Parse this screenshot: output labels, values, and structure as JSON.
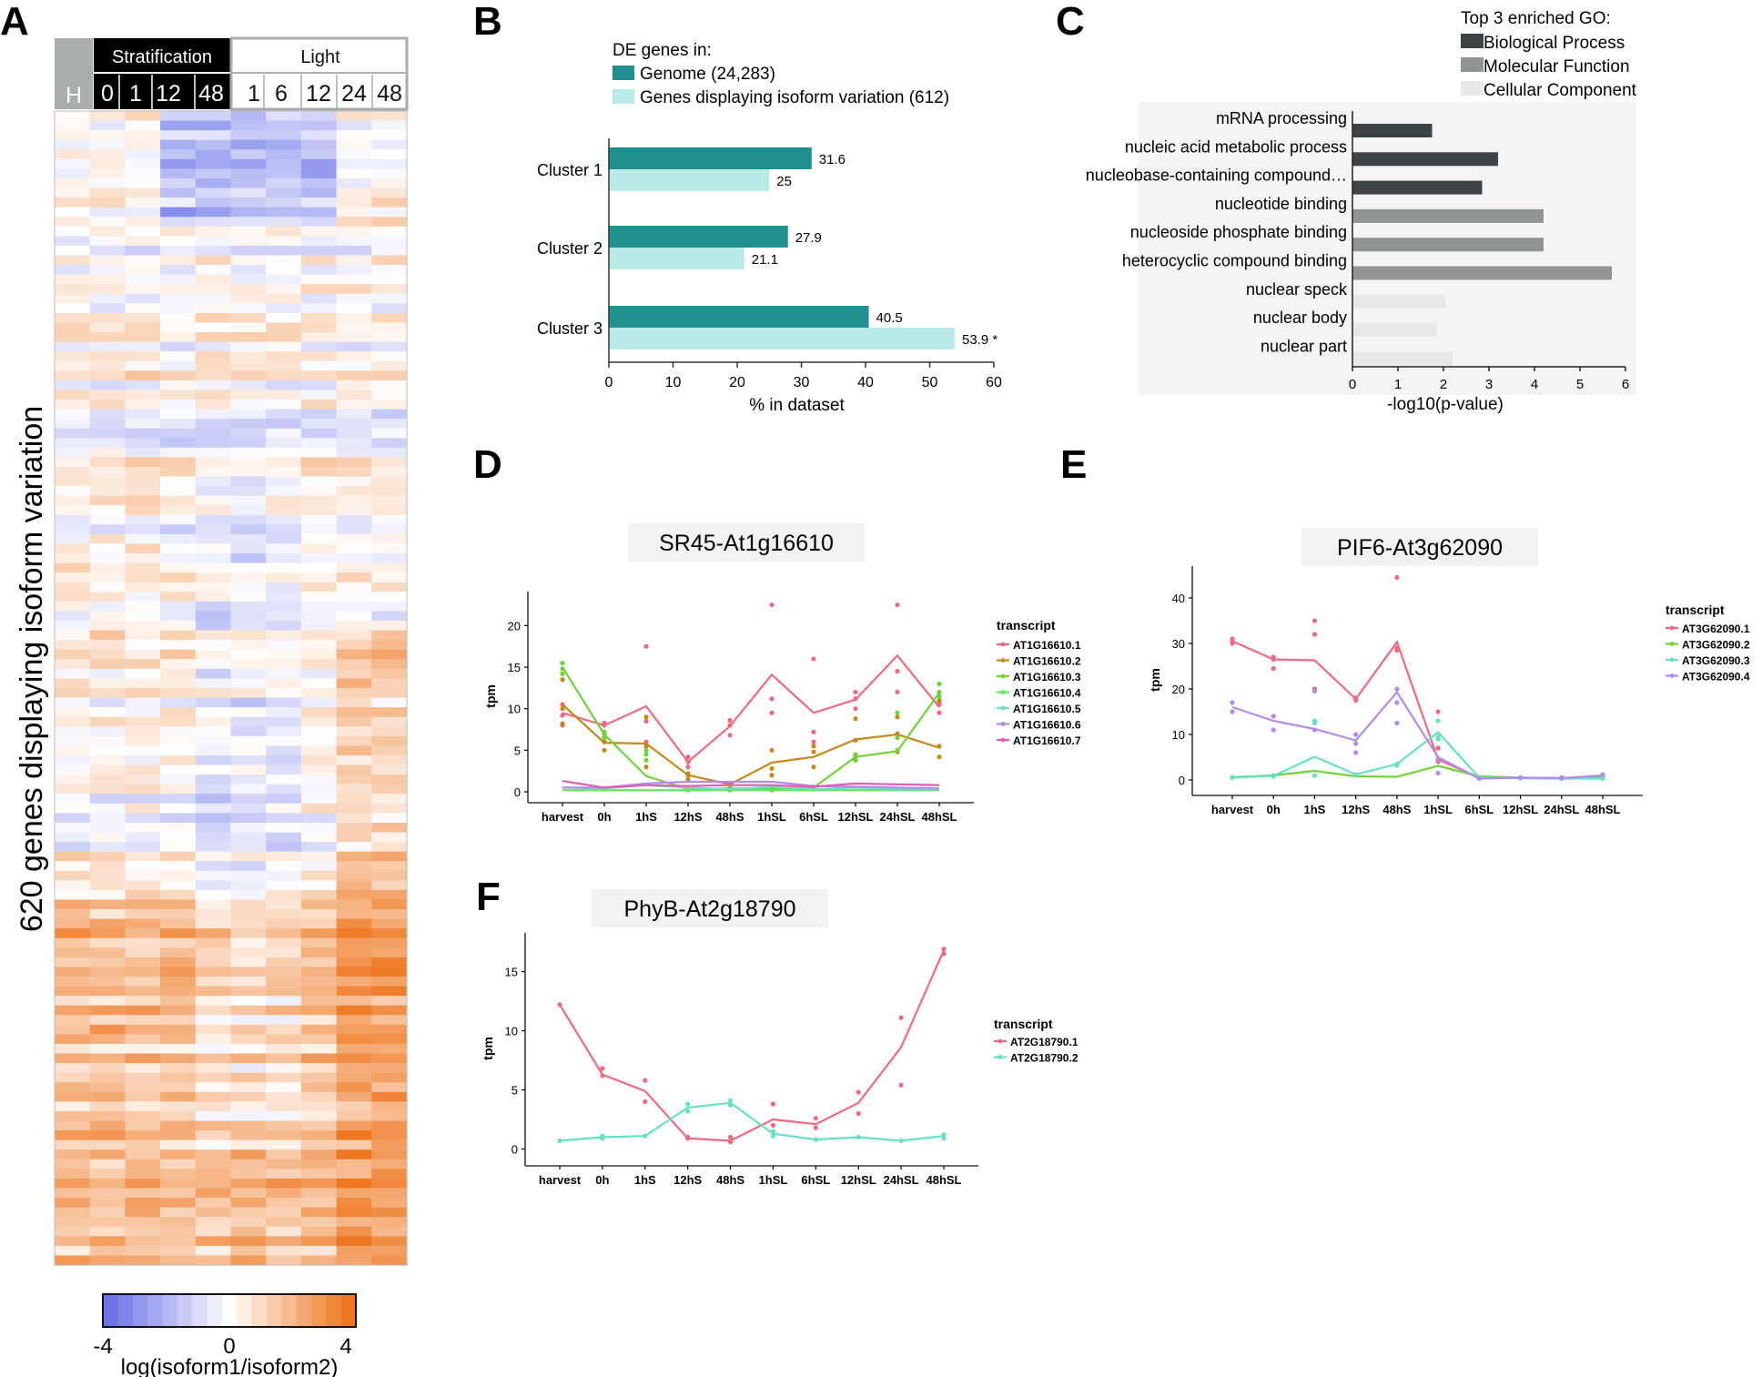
{
  "colors": {
    "teal_dark": "#1f8f8f",
    "teal_light": "#b8ebe6",
    "go_bio": "#3d4446",
    "go_mol": "#8f9593",
    "go_cell": "#e6e9e7",
    "heat_low": "#6a74e8",
    "heat_mid": "#ffffff",
    "heat_high": "#ee7720",
    "series_red": "#ee6a7f",
    "series_gold": "#c48a1c",
    "series_green": "#72d23a",
    "series_lime": "#5fe85a",
    "series_cyan": "#67e1c1",
    "series_purple": "#b08ce8",
    "series_magenta": "#e55bb8"
  },
  "panel_letters": [
    "A",
    "B",
    "C",
    "D",
    "E",
    "F"
  ],
  "panelA": {
    "ylabel": "620 genes displaying isoform variation",
    "header_groups": [
      "Stratification",
      "Light"
    ],
    "harvest_label": "H",
    "strat_times": [
      "0",
      "1",
      "12",
      "48"
    ],
    "light_times": [
      "1",
      "6",
      "12",
      "24",
      "48"
    ],
    "colorbar": {
      "min_label": "-4",
      "mid_label": "0",
      "max_label": "4",
      "title": "log(isoform1/isoform2)"
    }
  },
  "panelB": {
    "legend_title": "DE genes in:",
    "legend_items": [
      "Genome (24,283)",
      "Genes displaying isoform variation (612)"
    ],
    "star": "*"
  },
  "panelC": {
    "legend_title": "Top 3 enriched GO:",
    "legend_items": [
      "Biological Process",
      "Molecular Function",
      "Cellular Component"
    ]
  },
  "panelD": {
    "legend_title": "transcript"
  },
  "panelE": {
    "legend_title": "transcript"
  },
  "panelF": {
    "legend_title": "transcript"
  },
  "chart_data": [
    {
      "id": "A",
      "type": "heatmap",
      "title": "",
      "ylabel": "620 genes displaying isoform variation",
      "columns": [
        "H",
        "0",
        "1",
        "12",
        "48",
        "1",
        "6",
        "12",
        "24",
        "48"
      ],
      "column_groups": [
        {
          "name": "Harvest",
          "columns": [
            "H"
          ]
        },
        {
          "name": "Stratification",
          "columns": [
            "0",
            "1",
            "12",
            "48"
          ]
        },
        {
          "name": "Light",
          "columns": [
            "1",
            "6",
            "12",
            "24",
            "48"
          ]
        }
      ],
      "value_range": [
        -4,
        4
      ],
      "colorbar_label": "log(isoform1/isoform2)",
      "n_rows": 620
    },
    {
      "id": "B",
      "type": "bar",
      "orientation": "horizontal",
      "categories": [
        "Cluster 1",
        "Cluster 2",
        "Cluster 3"
      ],
      "series": [
        {
          "name": "Genome (24,283)",
          "values": [
            31.6,
            27.9,
            40.5
          ],
          "labels": [
            "31.6",
            "27.9",
            "40.5"
          ]
        },
        {
          "name": "Genes displaying isoform variation (612)",
          "values": [
            25,
            21.1,
            53.9
          ],
          "labels": [
            "25",
            "21.1",
            "53.9"
          ]
        }
      ],
      "xlabel": "% in dataset",
      "xlim": [
        0,
        60
      ],
      "xticks": [
        "0",
        "10",
        "20",
        "30",
        "40",
        "50",
        "60"
      ],
      "annotation": "53.9 *"
    },
    {
      "id": "C",
      "type": "bar",
      "orientation": "horizontal",
      "categories": [
        "mRNA processing",
        "nucleic acid metabolic process",
        "nucleobase-containing compound…",
        "nucleotide binding",
        "nucleoside phosphate binding",
        "heterocyclic compound binding",
        "nuclear speck",
        "nuclear body",
        "nuclear part"
      ],
      "groups": [
        "Biological Process",
        "Biological Process",
        "Biological Process",
        "Molecular Function",
        "Molecular Function",
        "Molecular Function",
        "Cellular Component",
        "Cellular Component",
        "Cellular Component"
      ],
      "values": [
        1.75,
        3.2,
        2.85,
        4.2,
        4.2,
        5.7,
        2.05,
        1.85,
        2.2
      ],
      "xlabel": "-log10(p-value)",
      "xlim": [
        0,
        6
      ],
      "xticks": [
        "0",
        "1",
        "2",
        "3",
        "4",
        "5",
        "6"
      ]
    },
    {
      "id": "D",
      "type": "line",
      "title": "SR45-At1g16610",
      "categories": [
        "harvest",
        "0h",
        "1hS",
        "12hS",
        "48hS",
        "1hSL",
        "6hSL",
        "12hSL",
        "24hSL",
        "48hSL"
      ],
      "ylabel": "tpm",
      "ylim": [
        0,
        23
      ],
      "yticks": [
        "0",
        "5",
        "10",
        "15",
        "20"
      ],
      "series": [
        {
          "name": "AT1G16610.1",
          "color": "#ee6a7f",
          "values": [
            9.5,
            8.0,
            10.3,
            3.6,
            7.9,
            14.1,
            9.5,
            11.1,
            16.4,
            10.2
          ],
          "reps": [
            [
              8.0,
              10.5,
              9.2
            ],
            [
              7.0,
              8.3,
              8.0
            ],
            [
              17.5,
              8.5,
              6.0
            ],
            [
              4.2,
              3.0,
              3.6
            ],
            [
              8.0,
              8.6,
              6.8
            ],
            [
              22.5,
              11.2,
              9.5
            ],
            [
              16.0,
              7.2,
              6.0
            ],
            [
              11.2,
              12.0,
              10.0
            ],
            [
              22.5,
              14.5,
              12.0
            ],
            [
              10.8,
              9.5,
              10.5
            ]
          ]
        },
        {
          "name": "AT1G16610.2",
          "color": "#c48a1c",
          "values": [
            10.5,
            5.9,
            5.8,
            2.0,
            0.9,
            3.5,
            4.2,
            6.3,
            6.9,
            5.3
          ],
          "reps": [
            [
              13.5,
              10.0,
              8.2
            ],
            [
              5.0,
              6.5,
              6.0
            ],
            [
              9.0,
              5.5,
              3.0
            ],
            [
              2.2,
              2.0,
              1.5
            ],
            [
              0.8,
              1.0,
              0.9
            ],
            [
              5.0,
              2.8,
              2.0
            ],
            [
              5.5,
              4.8,
              3.0
            ],
            [
              8.8,
              6.2,
              3.8
            ],
            [
              9.0,
              7.0,
              4.8
            ],
            [
              11.0,
              4.2,
              5.5
            ]
          ]
        },
        {
          "name": "AT1G16610.3",
          "color": "#72d23a",
          "values": [
            15.0,
            6.9,
            1.9,
            0.3,
            0.4,
            0.4,
            0.5,
            4.2,
            4.9,
            11.9
          ],
          "reps": [
            [
              15.5,
              14.8,
              14.2
            ],
            [
              7.0,
              6.5,
              7.2
            ],
            [
              4.5,
              3.8,
              5.0
            ],
            [
              0.3,
              0.5,
              0.2
            ],
            [
              0.4,
              0.2,
              0.5
            ],
            [
              0.4,
              0.6,
              0.2
            ],
            [
              0.5,
              0.3,
              0.6
            ],
            [
              4.5,
              3.8,
              4.2
            ],
            [
              9.5,
              6.5,
              5.0
            ],
            [
              13.0,
              11.5,
              12.0
            ]
          ]
        },
        {
          "name": "AT1G16610.4",
          "color": "#5fe85a",
          "values": [
            0.2,
            0.2,
            0.2,
            0.2,
            0.2,
            0.2,
            0.2,
            0.2,
            0.2,
            0.2
          ],
          "reps": []
        },
        {
          "name": "AT1G16610.5",
          "color": "#67e1c1",
          "values": [
            0.5,
            0.4,
            0.8,
            0.5,
            0.3,
            0.6,
            0.3,
            0.5,
            0.3,
            0.3
          ],
          "reps": []
        },
        {
          "name": "AT1G16610.6",
          "color": "#b08ce8",
          "values": [
            0.5,
            0.5,
            1.0,
            1.2,
            1.2,
            1.2,
            0.7,
            0.6,
            0.5,
            0.4
          ],
          "reps": []
        },
        {
          "name": "AT1G16610.7",
          "color": "#e55bb8",
          "values": [
            1.3,
            0.5,
            0.8,
            0.7,
            0.8,
            0.8,
            0.6,
            1.0,
            0.9,
            0.8
          ],
          "reps": []
        }
      ]
    },
    {
      "id": "E",
      "type": "line",
      "title": "PIF6-At3g62090",
      "categories": [
        "harvest",
        "0h",
        "1hS",
        "12hS",
        "48hS",
        "1hSL",
        "6hSL",
        "12hSL",
        "24hSL",
        "48hSL"
      ],
      "ylabel": "tpm",
      "ylim": [
        -1,
        45
      ],
      "yticks": [
        "0",
        "10",
        "20",
        "30",
        "40"
      ],
      "series": [
        {
          "name": "AT3G62090.1",
          "color": "#ee6a7f",
          "values": [
            30.5,
            26.5,
            26.3,
            17.8,
            30.3,
            4.5,
            0.5,
            0.5,
            0.4,
            0.5
          ],
          "reps": [
            [
              31.0,
              30.0,
              30.5
            ],
            [
              27.0,
              24.5,
              26.5
            ],
            [
              35.0,
              32.0,
              20.0
            ],
            [
              18.0,
              17.5,
              17.8
            ],
            [
              44.5,
              29.0,
              28.5
            ],
            [
              15.0,
              7.0,
              4.0
            ],
            [
              0.5,
              0.6,
              0.4
            ],
            [
              0.5,
              0.4,
              0.5
            ],
            [
              0.4,
              0.5,
              0.3
            ],
            [
              0.5,
              0.6,
              0.4
            ]
          ]
        },
        {
          "name": "AT3G62090.2",
          "color": "#72d23a",
          "values": [
            0.6,
            1.0,
            2.0,
            0.8,
            0.7,
            3.1,
            0.8,
            0.5,
            0.4,
            0.6
          ],
          "reps": []
        },
        {
          "name": "AT3G62090.3",
          "color": "#67e1c1",
          "values": [
            0.5,
            0.9,
            5.1,
            1.2,
            3.5,
            10.5,
            0.5,
            0.4,
            0.3,
            0.3
          ],
          "reps": [
            [
              0.5,
              0.6
            ],
            [
              1.0,
              0.8
            ],
            [
              13.0,
              12.5,
              1.0
            ],
            [
              1.2,
              1.0
            ],
            [
              3.5,
              3.2
            ],
            [
              13.0,
              9.0,
              9.5
            ],
            [
              0.5
            ],
            [
              0.4
            ],
            [
              0.3
            ],
            [
              0.3
            ]
          ]
        },
        {
          "name": "AT3G62090.4",
          "color": "#b08ce8",
          "values": [
            16.0,
            13.0,
            11.2,
            8.7,
            19.3,
            5.0,
            0.3,
            0.5,
            0.4,
            1.0
          ],
          "reps": [
            [
              17.0,
              15.0
            ],
            [
              14.0,
              11.0
            ],
            [
              19.5,
              11.0
            ],
            [
              10.0,
              6.0,
              8.0
            ],
            [
              20.0,
              17.0,
              12.5
            ],
            [
              4.5,
              1.5
            ],
            [
              0.3
            ],
            [
              0.5
            ],
            [
              0.4
            ],
            [
              1.2
            ]
          ]
        }
      ]
    },
    {
      "id": "F",
      "type": "line",
      "title": "PhyB-At2g18790",
      "categories": [
        "harvest",
        "0h",
        "1hS",
        "12hS",
        "48hS",
        "1hSL",
        "6hSL",
        "12hSL",
        "24hSL",
        "48hSL"
      ],
      "ylabel": "tpm",
      "ylim": [
        -0.5,
        17.5
      ],
      "yticks": [
        "0",
        "5",
        "10",
        "15"
      ],
      "series": [
        {
          "name": "AT2G18790.1",
          "color": "#ee6a7f",
          "values": [
            12.2,
            6.3,
            4.9,
            0.9,
            0.7,
            2.5,
            2.1,
            3.9,
            8.6,
            16.8
          ],
          "reps": [
            [
              12.2
            ],
            [
              6.8,
              6.2
            ],
            [
              5.8,
              4.0
            ],
            [
              0.9,
              1.0
            ],
            [
              1.0,
              0.6
            ],
            [
              3.8,
              2.0
            ],
            [
              2.6,
              1.8
            ],
            [
              4.8,
              3.0
            ],
            [
              11.1,
              5.4
            ],
            [
              16.5,
              16.9
            ]
          ]
        },
        {
          "name": "AT2G18790.2",
          "color": "#67e1c1",
          "values": [
            0.7,
            1.0,
            1.1,
            3.5,
            3.9,
            1.3,
            0.8,
            1.0,
            0.7,
            1.1
          ],
          "reps": [
            [
              0.7
            ],
            [
              1.1,
              0.9
            ],
            [
              1.1
            ],
            [
              3.8,
              3.2
            ],
            [
              4.1,
              3.7
            ],
            [
              1.5,
              1.1
            ],
            [
              0.8
            ],
            [
              1.0
            ],
            [
              0.7
            ],
            [
              1.2,
              0.9
            ]
          ]
        }
      ]
    }
  ]
}
